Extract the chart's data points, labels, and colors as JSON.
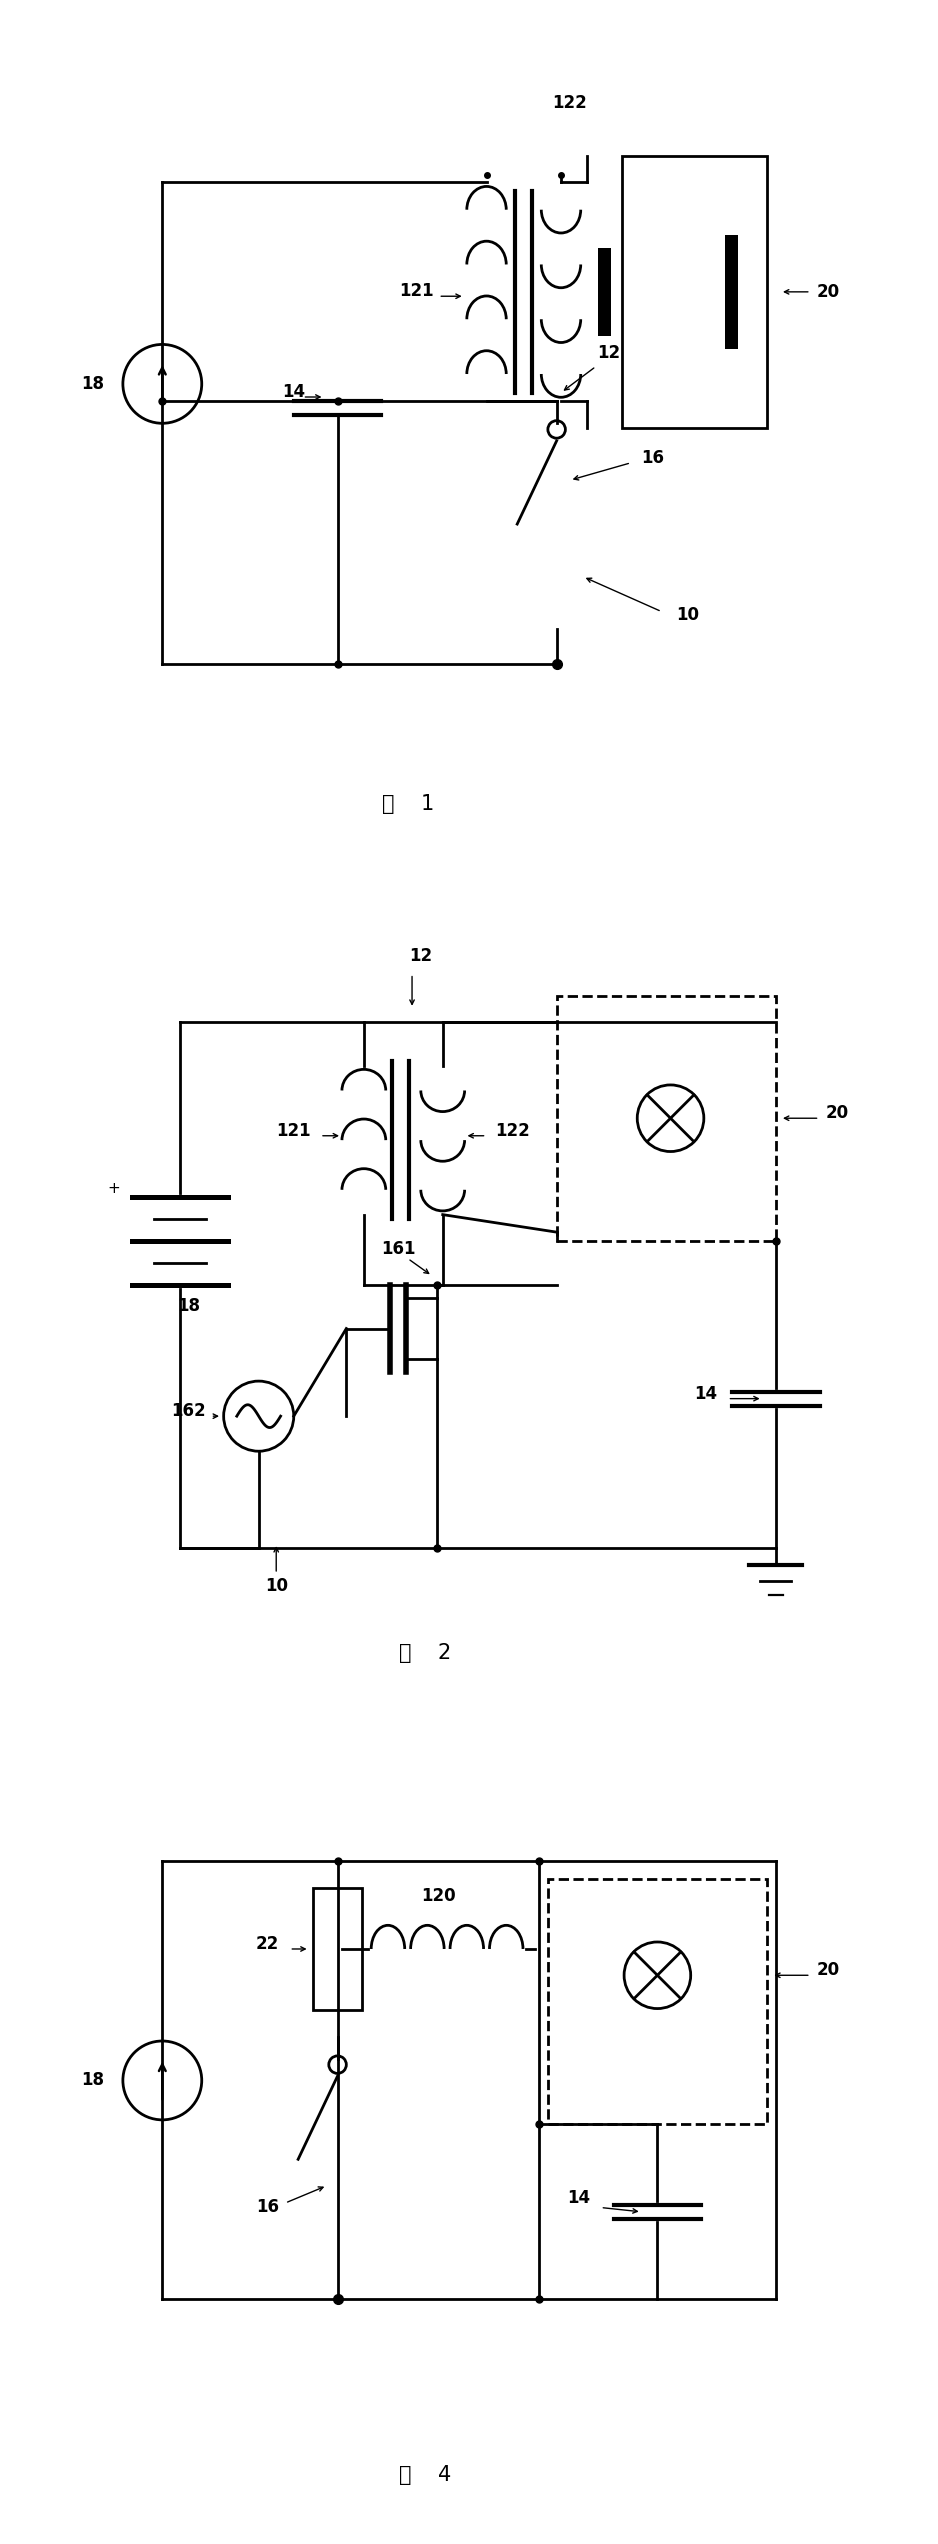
{
  "fig_width": 9.38,
  "fig_height": 25.44,
  "bg_color": "#ffffff",
  "line_color": "#000000",
  "line_width": 2.0
}
